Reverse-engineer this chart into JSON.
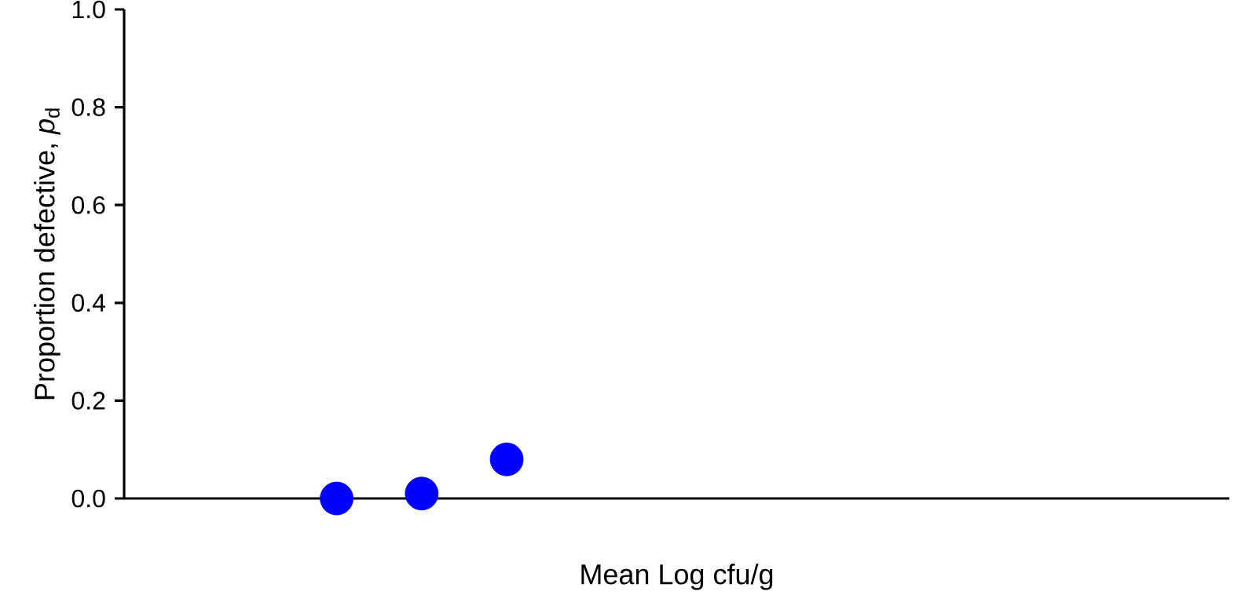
{
  "chart_data": {
    "type": "scatter",
    "xlabel": "Mean Log cfu/g",
    "ylabel": "Proportion defective, *p*$_{d}$",
    "categories": [
      null,
      null,
      null,
      null,
      null,
      null,
      null,
      null,
      null,
      null,
      null,
      null,
      null
    ],
    "series": [
      {
        "color": "#0000ff",
        "values": [
          null,
          null,
          0.0,
          0.01,
          0.08,
          null,
          null,
          null,
          null,
          null,
          null,
          null,
          null
        ]
      }
    ],
    "ylim": [
      0,
      1
    ],
    "yticks": [
      {
        "value": 0,
        "label": "0.0"
      },
      {
        "value": 0.2,
        "label": "0.2"
      },
      {
        "value": 0.4,
        "label": "0.4"
      },
      {
        "value": 0.6,
        "label": "0.6"
      },
      {
        "value": 0.8,
        "label": "0.8"
      },
      {
        "value": 1,
        "label": "1.0"
      }
    ],
    "grid": false
  }
}
